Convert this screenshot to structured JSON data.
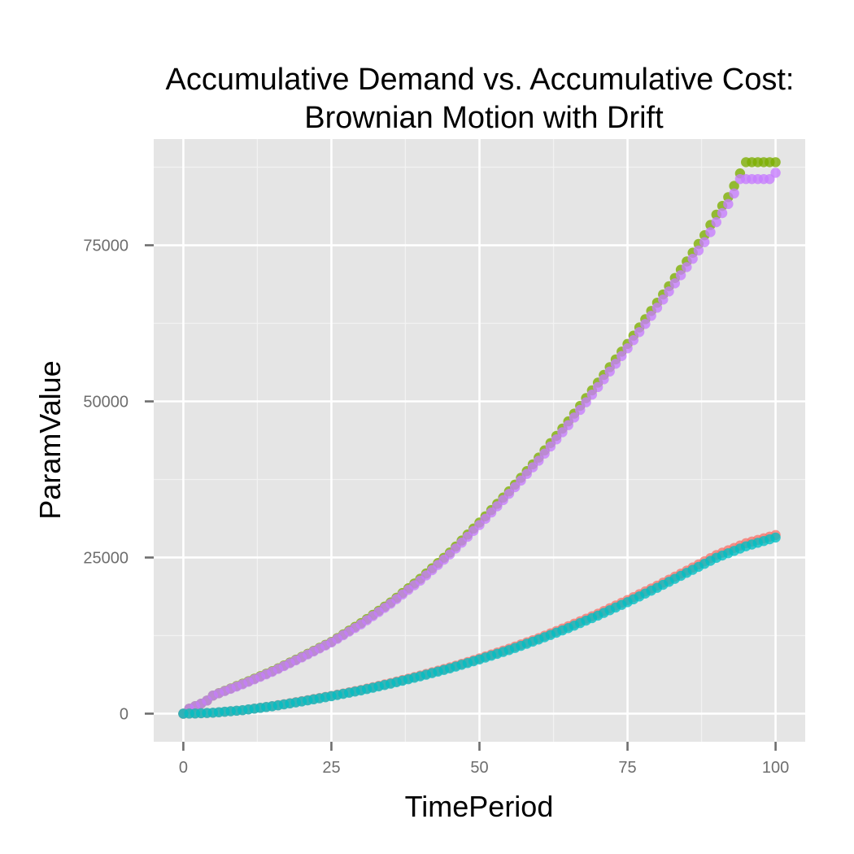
{
  "chart_data": {
    "type": "scatter",
    "title_lines": [
      "Accumulative Demand vs. Accumulative Cost:",
      "Brownian Motion with Drift"
    ],
    "xlabel": "TimePeriod",
    "ylabel": "ParamValue",
    "xlim": [
      -5,
      105
    ],
    "ylim": [
      -4500,
      92000
    ],
    "x_ticks": [
      0,
      25,
      50,
      75,
      100
    ],
    "x_tick_labels": [
      "0",
      "25",
      "50",
      "75",
      "100"
    ],
    "y_ticks": [
      0,
      25000,
      50000,
      75000
    ],
    "y_tick_labels": [
      "0",
      "25000",
      "50000",
      "75000"
    ],
    "grid": true,
    "legend": "none",
    "series": [
      {
        "color": "#7cae00",
        "points": [
          [
            0,
            0
          ],
          [
            1,
            800
          ],
          [
            2,
            1200
          ],
          [
            3,
            1600
          ],
          [
            4,
            2100
          ],
          [
            5,
            2900
          ],
          [
            10,
            4800
          ],
          [
            15,
            6800
          ],
          [
            20,
            9100
          ],
          [
            25,
            11500
          ],
          [
            30,
            14500
          ],
          [
            35,
            17800
          ],
          [
            40,
            21600
          ],
          [
            45,
            25800
          ],
          [
            50,
            30600
          ],
          [
            55,
            35600
          ],
          [
            60,
            41000
          ],
          [
            65,
            46800
          ],
          [
            70,
            53000
          ],
          [
            75,
            59200
          ],
          [
            80,
            65800
          ],
          [
            85,
            72400
          ],
          [
            88,
            76600
          ],
          [
            90,
            79900
          ],
          [
            92,
            82700
          ],
          [
            93,
            84500
          ],
          [
            94,
            86500
          ],
          [
            95,
            88300
          ],
          [
            96,
            88300
          ],
          [
            97,
            88300
          ],
          [
            98,
            88300
          ],
          [
            99,
            88300
          ],
          [
            100,
            88300
          ]
        ]
      },
      {
        "color": "#c77cff",
        "points": [
          [
            0,
            0
          ],
          [
            1,
            800
          ],
          [
            2,
            1200
          ],
          [
            3,
            1600
          ],
          [
            4,
            2100
          ],
          [
            5,
            2900
          ],
          [
            10,
            4700
          ],
          [
            15,
            6700
          ],
          [
            20,
            9000
          ],
          [
            25,
            11400
          ],
          [
            30,
            14300
          ],
          [
            35,
            17600
          ],
          [
            40,
            21300
          ],
          [
            45,
            25500
          ],
          [
            50,
            30200
          ],
          [
            55,
            35200
          ],
          [
            60,
            40500
          ],
          [
            65,
            46200
          ],
          [
            70,
            52300
          ],
          [
            75,
            58500
          ],
          [
            80,
            65000
          ],
          [
            85,
            71500
          ],
          [
            88,
            75500
          ],
          [
            90,
            78700
          ],
          [
            92,
            81600
          ],
          [
            93,
            83300
          ],
          [
            94,
            85600
          ],
          [
            95,
            85600
          ],
          [
            96,
            85600
          ],
          [
            97,
            85600
          ],
          [
            98,
            85600
          ],
          [
            99,
            85600
          ],
          [
            100,
            86600
          ]
        ]
      },
      {
        "color": "#f8766d",
        "points": [
          [
            0,
            0
          ],
          [
            2,
            30
          ],
          [
            5,
            150
          ],
          [
            10,
            560
          ],
          [
            15,
            1200
          ],
          [
            20,
            2000
          ],
          [
            25,
            2850
          ],
          [
            30,
            3800
          ],
          [
            35,
            4900
          ],
          [
            40,
            6100
          ],
          [
            45,
            7400
          ],
          [
            50,
            8850
          ],
          [
            55,
            10400
          ],
          [
            60,
            12100
          ],
          [
            65,
            14000
          ],
          [
            70,
            16000
          ],
          [
            75,
            18200
          ],
          [
            80,
            20500
          ],
          [
            85,
            22900
          ],
          [
            90,
            25400
          ],
          [
            95,
            27300
          ],
          [
            100,
            28600
          ]
        ]
      },
      {
        "color": "#00bfc4",
        "points": [
          [
            0,
            0
          ],
          [
            2,
            30
          ],
          [
            5,
            150
          ],
          [
            10,
            550
          ],
          [
            15,
            1180
          ],
          [
            20,
            1950
          ],
          [
            25,
            2800
          ],
          [
            30,
            3720
          ],
          [
            35,
            4800
          ],
          [
            40,
            5980
          ],
          [
            45,
            7250
          ],
          [
            50,
            8680
          ],
          [
            55,
            10180
          ],
          [
            60,
            11870
          ],
          [
            65,
            13700
          ],
          [
            70,
            15700
          ],
          [
            75,
            17850
          ],
          [
            80,
            20150
          ],
          [
            85,
            22550
          ],
          [
            90,
            24950
          ],
          [
            95,
            26800
          ],
          [
            100,
            28200
          ]
        ]
      }
    ]
  }
}
